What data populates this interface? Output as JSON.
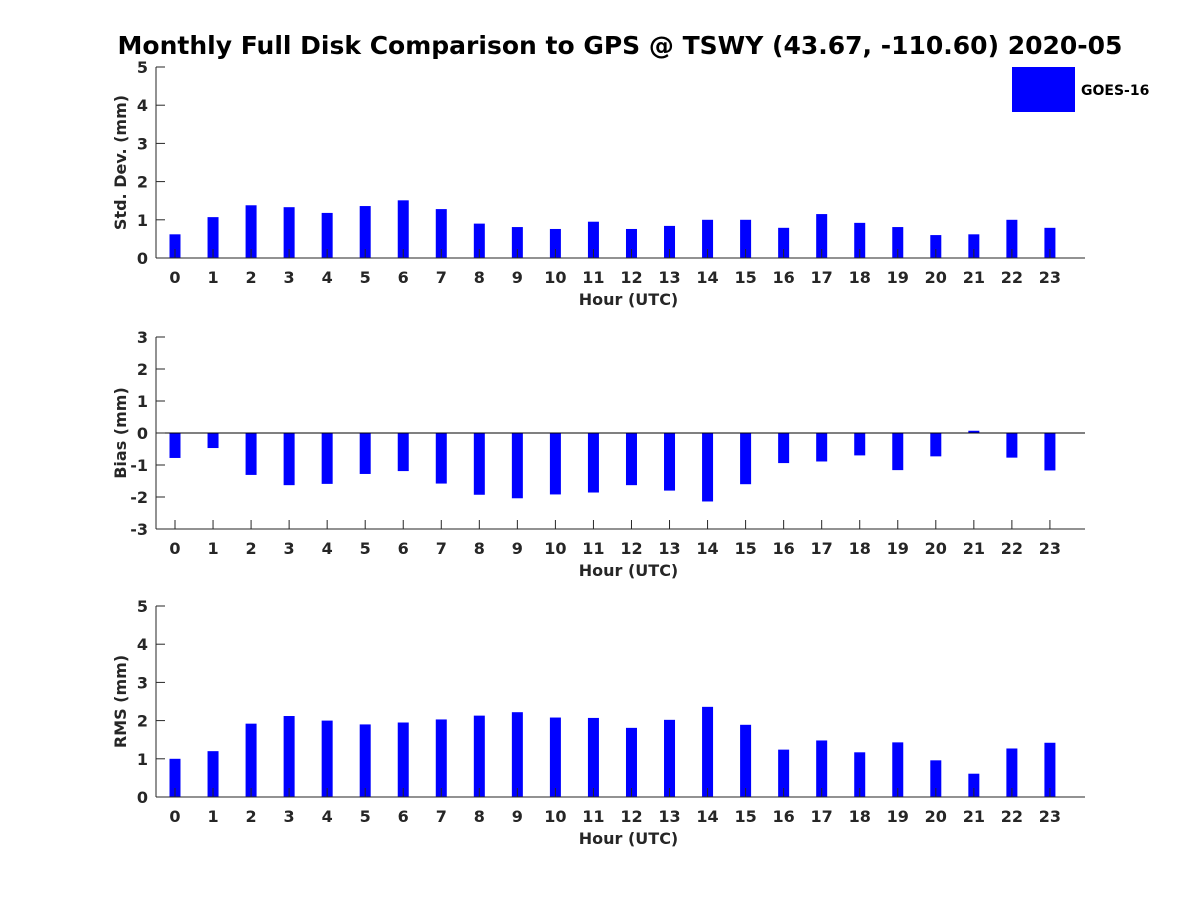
{
  "chart_data": [
    {
      "type": "bar",
      "title": "Monthly Full Disk Comparison to GPS @ TSWY (43.67, -110.60) 2020-05",
      "xlabel": "Hour (UTC)",
      "ylabel": "Std. Dev. (mm)",
      "ylim": [
        0,
        5
      ],
      "yticks": [
        0,
        1,
        2,
        3,
        4,
        5
      ],
      "categories": [
        "0",
        "1",
        "2",
        "3",
        "4",
        "5",
        "6",
        "7",
        "8",
        "9",
        "10",
        "11",
        "12",
        "13",
        "14",
        "15",
        "16",
        "17",
        "18",
        "19",
        "20",
        "21",
        "22",
        "23"
      ],
      "series": [
        {
          "name": "GOES-16",
          "color": "#0000ff",
          "values": [
            0.62,
            1.07,
            1.38,
            1.33,
            1.18,
            1.36,
            1.51,
            1.28,
            0.9,
            0.81,
            0.76,
            0.95,
            0.76,
            0.84,
            1.0,
            1.0,
            0.79,
            1.15,
            0.92,
            0.81,
            0.6,
            0.62,
            1.0,
            0.79
          ]
        }
      ],
      "legend": {
        "position": "top-right",
        "entries": [
          "GOES-16"
        ]
      },
      "grid": false
    },
    {
      "type": "bar",
      "xlabel": "Hour (UTC)",
      "ylabel": "Bias (mm)",
      "ylim": [
        -3,
        3
      ],
      "yticks": [
        -3,
        -2,
        -1,
        0,
        1,
        2,
        3
      ],
      "categories": [
        "0",
        "1",
        "2",
        "3",
        "4",
        "5",
        "6",
        "7",
        "8",
        "9",
        "10",
        "11",
        "12",
        "13",
        "14",
        "15",
        "16",
        "17",
        "18",
        "19",
        "20",
        "21",
        "22",
        "23"
      ],
      "series": [
        {
          "name": "GOES-16",
          "color": "#0000ff",
          "values": [
            -0.78,
            -0.47,
            -1.31,
            -1.63,
            -1.59,
            -1.28,
            -1.19,
            -1.58,
            -1.93,
            -2.04,
            -1.92,
            -1.86,
            -1.63,
            -1.8,
            -2.14,
            -1.6,
            -0.94,
            -0.89,
            -0.7,
            -1.16,
            -0.73,
            0.07,
            -0.77,
            -1.17
          ]
        }
      ],
      "zero_line": true,
      "grid": false
    },
    {
      "type": "bar",
      "xlabel": "Hour (UTC)",
      "ylabel": "RMS (mm)",
      "ylim": [
        0,
        5
      ],
      "yticks": [
        0,
        1,
        2,
        3,
        4,
        5
      ],
      "categories": [
        "0",
        "1",
        "2",
        "3",
        "4",
        "5",
        "6",
        "7",
        "8",
        "9",
        "10",
        "11",
        "12",
        "13",
        "14",
        "15",
        "16",
        "17",
        "18",
        "19",
        "20",
        "21",
        "22",
        "23"
      ],
      "series": [
        {
          "name": "GOES-16",
          "color": "#0000ff",
          "values": [
            1.0,
            1.2,
            1.92,
            2.12,
            2.0,
            1.9,
            1.95,
            2.03,
            2.13,
            2.22,
            2.08,
            2.07,
            1.81,
            2.02,
            2.36,
            1.89,
            1.24,
            1.48,
            1.17,
            1.43,
            0.96,
            0.61,
            1.27,
            1.42
          ]
        }
      ],
      "grid": false
    }
  ]
}
